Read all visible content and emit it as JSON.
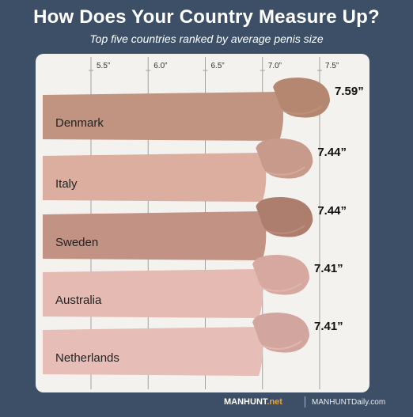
{
  "chart_data": {
    "type": "bar",
    "title": "How Does Your Country Measure Up?",
    "subtitle": "Top five countries ranked by average penis size",
    "categories": [
      "Denmark",
      "Italy",
      "Sweden",
      "Australia",
      "Netherlands"
    ],
    "values": [
      7.59,
      7.44,
      7.44,
      7.41,
      7.41
    ],
    "value_labels": [
      "7.59”",
      "7.44”",
      "7.44”",
      "7.41”",
      "7.41”"
    ],
    "x_ticks": [
      5.5,
      6.0,
      6.5,
      7.0,
      7.5
    ],
    "x_tick_labels": [
      "5.5”",
      "6.0”",
      "6.5”",
      "7.0”",
      "7.5”"
    ],
    "xlim": [
      5.5,
      7.5
    ],
    "grid": true,
    "colors": {
      "shaft": [
        "#c09481",
        "#dcaea0",
        "#c29284",
        "#e4bab2",
        "#e6beb7"
      ],
      "head": [
        "#b58770",
        "#c89a8c",
        "#ad7e6d",
        "#d6a8a0",
        "#d2a59e"
      ]
    }
  },
  "footer": {
    "brand_main": "MANHUNT",
    "brand_suffix": ".net",
    "site": "MANHUNTDaily.com"
  },
  "colors": {
    "background": "#3d4f66",
    "panel": "#f3f2ef",
    "grid": "#a0a0a0"
  }
}
